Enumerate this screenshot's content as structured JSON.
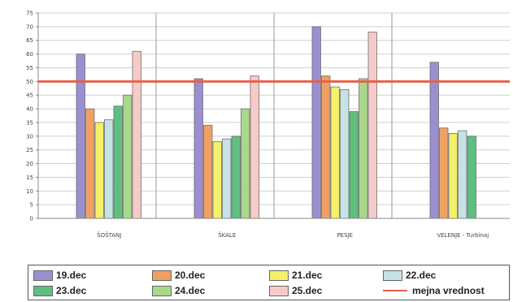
{
  "chart_data": {
    "type": "bar",
    "categories": [
      "ŠOŠTANJ",
      "ŠKALE",
      "PESJE",
      "VELENJE - Turbinaj"
    ],
    "series": [
      {
        "name": "19.dec",
        "color": "#9b8fd1",
        "values": [
          60,
          51,
          70,
          57
        ]
      },
      {
        "name": "20.dec",
        "color": "#f0a064",
        "values": [
          40,
          34,
          52,
          33
        ]
      },
      {
        "name": "21.dec",
        "color": "#f4f06a",
        "values": [
          35,
          28,
          48,
          31
        ]
      },
      {
        "name": "22.dec",
        "color": "#c6e2e4",
        "values": [
          36,
          29,
          47,
          32
        ]
      },
      {
        "name": "23.dec",
        "color": "#5fbf80",
        "values": [
          41,
          30,
          39,
          30
        ]
      },
      {
        "name": "24.dec",
        "color": "#a8d88a",
        "values": [
          45,
          40,
          51,
          null
        ]
      },
      {
        "name": "25.dec",
        "color": "#f5cbc8",
        "values": [
          61,
          52,
          68,
          null
        ]
      }
    ],
    "threshold": {
      "name": "mejna vrednost",
      "value": 50,
      "color": "#e8604c"
    },
    "yticks": [
      0,
      5,
      10,
      15,
      20,
      25,
      30,
      35,
      40,
      45,
      50,
      55,
      60,
      65,
      70,
      75
    ],
    "ylim": [
      0,
      75
    ],
    "grid": "horizontal",
    "legend_placement": "bottom"
  }
}
